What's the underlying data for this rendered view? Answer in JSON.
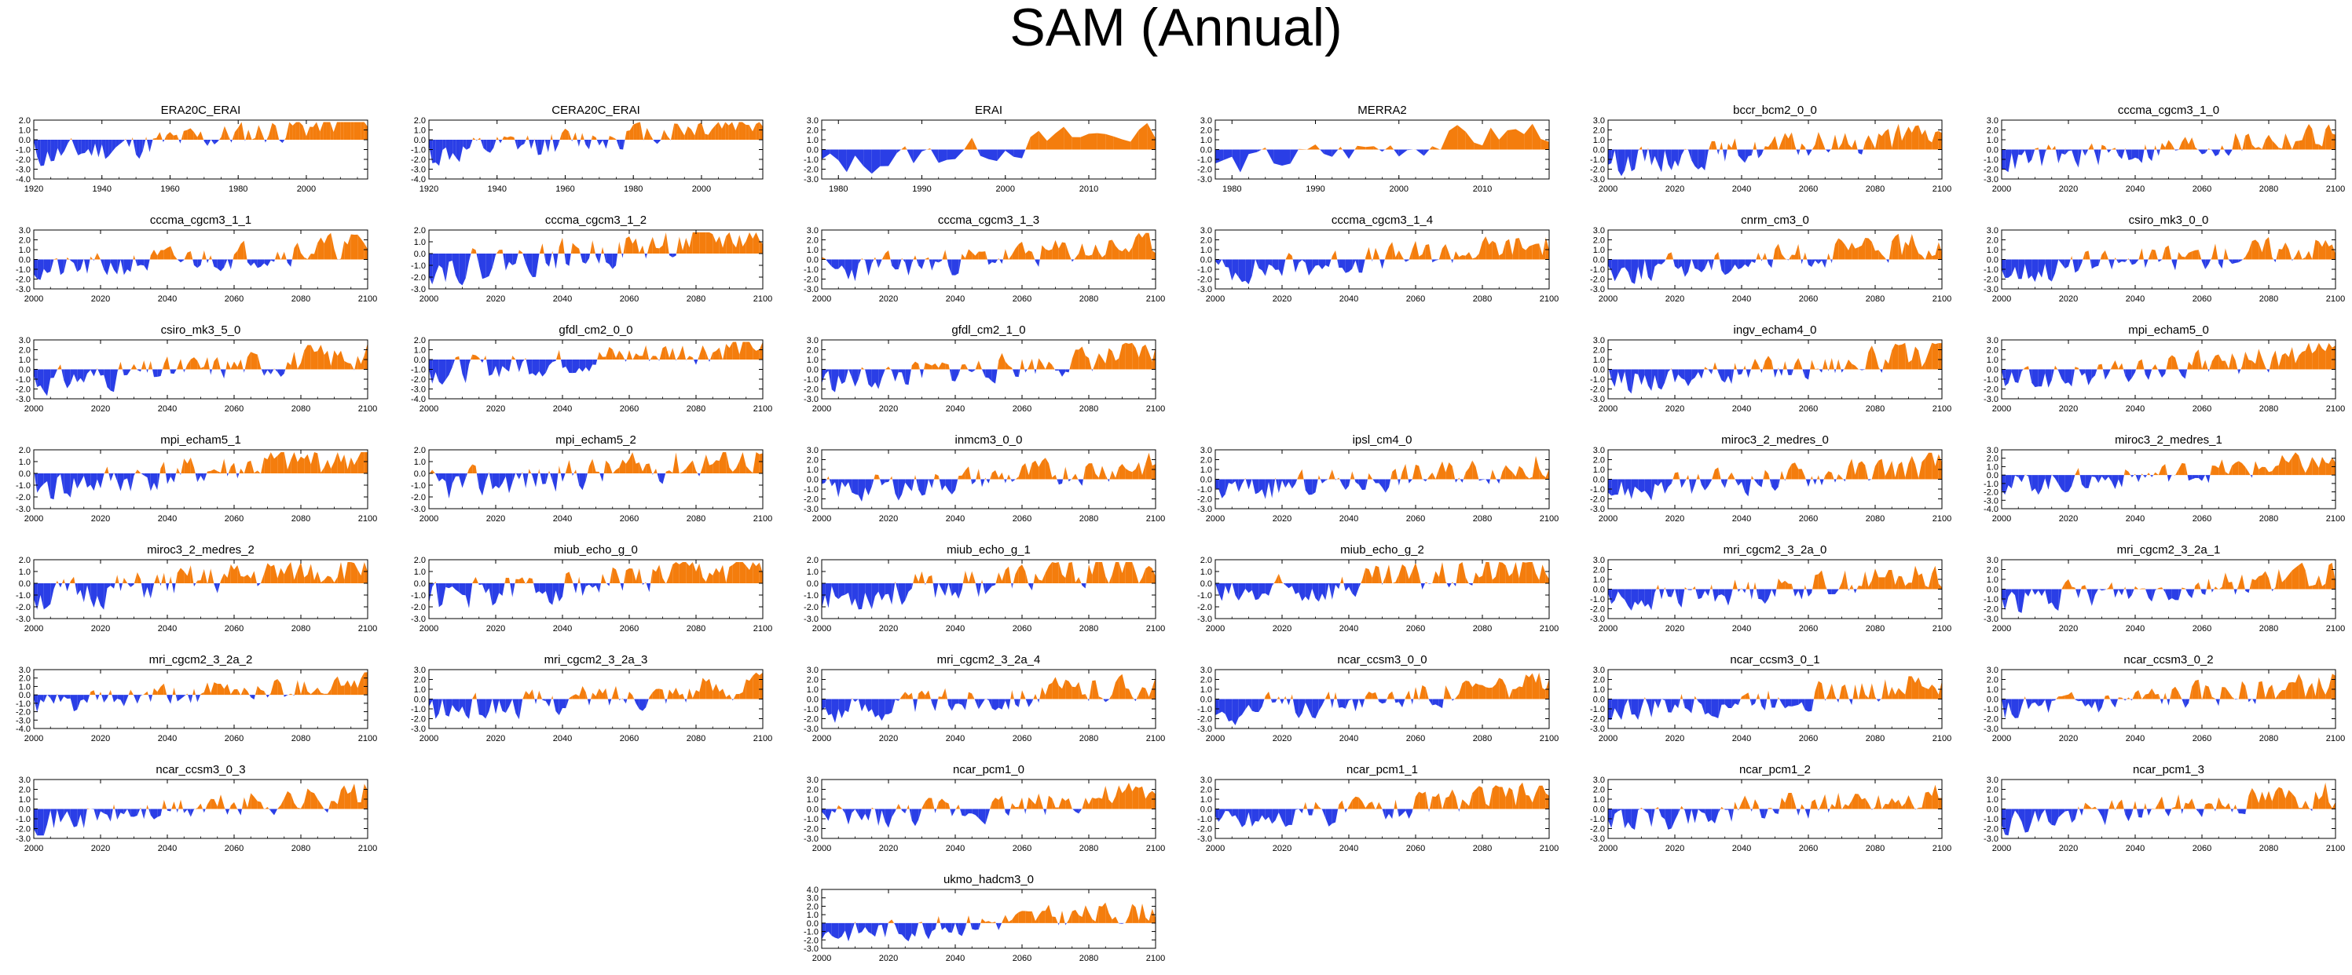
{
  "page": {
    "title": "SAM (Annual)"
  },
  "colors": {
    "positive": "#f47d0d",
    "negative": "#2a3ee6",
    "axis": "#000000",
    "background": "#ffffff"
  },
  "panels": [
    {
      "title": "ERA20C_ERAI",
      "xlim": [
        1920,
        2018
      ],
      "xticks": [
        1920,
        1940,
        1960,
        1980,
        2000
      ],
      "ylim": [
        -4.0,
        2.0
      ],
      "yticks": [
        "2.0",
        "1.0",
        "0.0",
        "-1.0",
        "-2.0",
        "-3.0",
        "-4.0"
      ],
      "seed": 11
    },
    {
      "title": "CERA20C_ERAI",
      "xlim": [
        1920,
        2018
      ],
      "xticks": [
        1920,
        1940,
        1960,
        1980,
        2000
      ],
      "ylim": [
        -4.0,
        2.0
      ],
      "yticks": [
        "2.0",
        "1.0",
        "0.0",
        "-1.0",
        "-2.0",
        "-3.0",
        "-4.0"
      ],
      "seed": 12
    },
    {
      "title": "ERAI",
      "xlim": [
        1978,
        2018
      ],
      "xticks": [
        1980,
        1990,
        2000,
        2010
      ],
      "ylim": [
        -3.0,
        3.0
      ],
      "yticks": [
        "3.0",
        "2.0",
        "1.0",
        "0.0",
        "-1.0",
        "-2.0",
        "-3.0"
      ],
      "seed": 13
    },
    {
      "title": "MERRA2",
      "xlim": [
        1978,
        2018
      ],
      "xticks": [
        1980,
        1990,
        2000,
        2010
      ],
      "ylim": [
        -3.0,
        3.0
      ],
      "yticks": [
        "3.0",
        "2.0",
        "1.0",
        "0.0",
        "-1.0",
        "-2.0",
        "-3.0"
      ],
      "seed": 14
    },
    {
      "title": "bccr_bcm2_0_0",
      "xlim": [
        2000,
        2100
      ],
      "xticks": [
        2000,
        2020,
        2040,
        2060,
        2080,
        2100
      ],
      "ylim": [
        -3.0,
        3.0
      ],
      "yticks": [
        "3.0",
        "2.0",
        "1.0",
        "0.0",
        "-1.0",
        "-2.0",
        "-3.0"
      ],
      "seed": 15
    },
    {
      "title": "cccma_cgcm3_1_0",
      "xlim": [
        2000,
        2100
      ],
      "xticks": [
        2000,
        2020,
        2040,
        2060,
        2080,
        2100
      ],
      "ylim": [
        -3.0,
        3.0
      ],
      "yticks": [
        "3.0",
        "2.0",
        "1.0",
        "0.0",
        "-1.0",
        "-2.0",
        "-3.0"
      ],
      "seed": 16
    },
    {
      "title": "cccma_cgcm3_1_1",
      "xlim": [
        2000,
        2100
      ],
      "xticks": [
        2000,
        2020,
        2040,
        2060,
        2080,
        2100
      ],
      "ylim": [
        -3.0,
        3.0
      ],
      "yticks": [
        "3.0",
        "2.0",
        "1.0",
        "0.0",
        "-1.0",
        "-2.0",
        "-3.0"
      ],
      "seed": 21
    },
    {
      "title": "cccma_cgcm3_1_2",
      "xlim": [
        2000,
        2100
      ],
      "xticks": [
        2000,
        2020,
        2040,
        2060,
        2080,
        2100
      ],
      "ylim": [
        -3.0,
        2.0
      ],
      "yticks": [
        "2.0",
        "1.0",
        "0.0",
        "-1.0",
        "-2.0",
        "-3.0"
      ],
      "seed": 22
    },
    {
      "title": "cccma_cgcm3_1_3",
      "xlim": [
        2000,
        2100
      ],
      "xticks": [
        2000,
        2020,
        2040,
        2060,
        2080,
        2100
      ],
      "ylim": [
        -3.0,
        3.0
      ],
      "yticks": [
        "3.0",
        "2.0",
        "1.0",
        "0.0",
        "-1.0",
        "-2.0",
        "-3.0"
      ],
      "seed": 23
    },
    {
      "title": "cccma_cgcm3_1_4",
      "xlim": [
        2000,
        2100
      ],
      "xticks": [
        2000,
        2020,
        2040,
        2060,
        2080,
        2100
      ],
      "ylim": [
        -3.0,
        3.0
      ],
      "yticks": [
        "3.0",
        "2.0",
        "1.0",
        "0.0",
        "-1.0",
        "-2.0",
        "-3.0"
      ],
      "seed": 24
    },
    {
      "title": "cnrm_cm3_0",
      "xlim": [
        2000,
        2100
      ],
      "xticks": [
        2000,
        2020,
        2040,
        2060,
        2080,
        2100
      ],
      "ylim": [
        -3.0,
        3.0
      ],
      "yticks": [
        "3.0",
        "2.0",
        "1.0",
        "0.0",
        "-1.0",
        "-2.0",
        "-3.0"
      ],
      "seed": 25
    },
    {
      "title": "csiro_mk3_0_0",
      "xlim": [
        2000,
        2100
      ],
      "xticks": [
        2000,
        2020,
        2040,
        2060,
        2080,
        2100
      ],
      "ylim": [
        -3.0,
        3.0
      ],
      "yticks": [
        "3.0",
        "2.0",
        "1.0",
        "0.0",
        "-1.0",
        "-2.0",
        "-3.0"
      ],
      "seed": 26
    },
    {
      "title": "csiro_mk3_5_0",
      "xlim": [
        2000,
        2100
      ],
      "xticks": [
        2000,
        2020,
        2040,
        2060,
        2080,
        2100
      ],
      "ylim": [
        -3.0,
        3.0
      ],
      "yticks": [
        "3.0",
        "2.0",
        "1.0",
        "0.0",
        "-1.0",
        "-2.0",
        "-3.0"
      ],
      "seed": 31
    },
    {
      "title": "gfdl_cm2_0_0",
      "xlim": [
        2000,
        2100
      ],
      "xticks": [
        2000,
        2020,
        2040,
        2060,
        2080,
        2100
      ],
      "ylim": [
        -4.0,
        2.0
      ],
      "yticks": [
        "2.0",
        "1.0",
        "0.0",
        "-1.0",
        "-2.0",
        "-3.0",
        "-4.0"
      ],
      "seed": 32
    },
    {
      "title": "gfdl_cm2_1_0",
      "xlim": [
        2000,
        2100
      ],
      "xticks": [
        2000,
        2020,
        2040,
        2060,
        2080,
        2100
      ],
      "ylim": [
        -3.0,
        3.0
      ],
      "yticks": [
        "3.0",
        "2.0",
        "1.0",
        "0.0",
        "-1.0",
        "-2.0",
        "-3.0"
      ],
      "seed": 33
    },
    null,
    {
      "title": "ingv_echam4_0",
      "xlim": [
        2000,
        2100
      ],
      "xticks": [
        2000,
        2020,
        2040,
        2060,
        2080,
        2100
      ],
      "ylim": [
        -3.0,
        3.0
      ],
      "yticks": [
        "3.0",
        "2.0",
        "1.0",
        "0.0",
        "-1.0",
        "-2.0",
        "-3.0"
      ],
      "seed": 35
    },
    {
      "title": "mpi_echam5_0",
      "xlim": [
        2000,
        2100
      ],
      "xticks": [
        2000,
        2020,
        2040,
        2060,
        2080,
        2100
      ],
      "ylim": [
        -3.0,
        3.0
      ],
      "yticks": [
        "3.0",
        "2.0",
        "1.0",
        "0.0",
        "-1.0",
        "-2.0",
        "-3.0"
      ],
      "seed": 36
    },
    {
      "title": "mpi_echam5_1",
      "xlim": [
        2000,
        2100
      ],
      "xticks": [
        2000,
        2020,
        2040,
        2060,
        2080,
        2100
      ],
      "ylim": [
        -3.0,
        2.0
      ],
      "yticks": [
        "2.0",
        "1.0",
        "0.0",
        "-1.0",
        "-2.0",
        "-3.0"
      ],
      "seed": 41
    },
    {
      "title": "mpi_echam5_2",
      "xlim": [
        2000,
        2100
      ],
      "xticks": [
        2000,
        2020,
        2040,
        2060,
        2080,
        2100
      ],
      "ylim": [
        -3.0,
        2.0
      ],
      "yticks": [
        "2.0",
        "1.0",
        "0.0",
        "-1.0",
        "-2.0",
        "-3.0"
      ],
      "seed": 42
    },
    {
      "title": "inmcm3_0_0",
      "xlim": [
        2000,
        2100
      ],
      "xticks": [
        2000,
        2020,
        2040,
        2060,
        2080,
        2100
      ],
      "ylim": [
        -3.0,
        3.0
      ],
      "yticks": [
        "3.0",
        "2.0",
        "1.0",
        "0.0",
        "-1.0",
        "-2.0",
        "-3.0"
      ],
      "seed": 43
    },
    {
      "title": "ipsl_cm4_0",
      "xlim": [
        2000,
        2100
      ],
      "xticks": [
        2000,
        2020,
        2040,
        2060,
        2080,
        2100
      ],
      "ylim": [
        -3.0,
        3.0
      ],
      "yticks": [
        "3.0",
        "2.0",
        "1.0",
        "0.0",
        "-1.0",
        "-2.0",
        "-3.0"
      ],
      "seed": 44
    },
    {
      "title": "miroc3_2_medres_0",
      "xlim": [
        2000,
        2100
      ],
      "xticks": [
        2000,
        2020,
        2040,
        2060,
        2080,
        2100
      ],
      "ylim": [
        -3.0,
        3.0
      ],
      "yticks": [
        "3.0",
        "2.0",
        "1.0",
        "0.0",
        "-1.0",
        "-2.0",
        "-3.0"
      ],
      "seed": 45
    },
    {
      "title": "miroc3_2_medres_1",
      "xlim": [
        2000,
        2100
      ],
      "xticks": [
        2000,
        2020,
        2040,
        2060,
        2080,
        2100
      ],
      "ylim": [
        -4.0,
        3.0
      ],
      "yticks": [
        "3.0",
        "2.0",
        "1.0",
        "0.0",
        "-1.0",
        "-2.0",
        "-3.0",
        "-4.0"
      ],
      "seed": 46
    },
    {
      "title": "miroc3_2_medres_2",
      "xlim": [
        2000,
        2100
      ],
      "xticks": [
        2000,
        2020,
        2040,
        2060,
        2080,
        2100
      ],
      "ylim": [
        -3.0,
        2.0
      ],
      "yticks": [
        "2.0",
        "1.0",
        "0.0",
        "-1.0",
        "-2.0",
        "-3.0"
      ],
      "seed": 51
    },
    {
      "title": "miub_echo_g_0",
      "xlim": [
        2000,
        2100
      ],
      "xticks": [
        2000,
        2020,
        2040,
        2060,
        2080,
        2100
      ],
      "ylim": [
        -3.0,
        2.0
      ],
      "yticks": [
        "2.0",
        "1.0",
        "0.0",
        "-1.0",
        "-2.0",
        "-3.0"
      ],
      "seed": 52
    },
    {
      "title": "miub_echo_g_1",
      "xlim": [
        2000,
        2100
      ],
      "xticks": [
        2000,
        2020,
        2040,
        2060,
        2080,
        2100
      ],
      "ylim": [
        -3.0,
        2.0
      ],
      "yticks": [
        "2.0",
        "1.0",
        "0.0",
        "-1.0",
        "-2.0",
        "-3.0"
      ],
      "seed": 53
    },
    {
      "title": "miub_echo_g_2",
      "xlim": [
        2000,
        2100
      ],
      "xticks": [
        2000,
        2020,
        2040,
        2060,
        2080,
        2100
      ],
      "ylim": [
        -3.0,
        2.0
      ],
      "yticks": [
        "2.0",
        "1.0",
        "0.0",
        "-1.0",
        "-2.0",
        "-3.0"
      ],
      "seed": 54
    },
    {
      "title": "mri_cgcm2_3_2a_0",
      "xlim": [
        2000,
        2100
      ],
      "xticks": [
        2000,
        2020,
        2040,
        2060,
        2080,
        2100
      ],
      "ylim": [
        -3.0,
        3.0
      ],
      "yticks": [
        "3.0",
        "2.0",
        "1.0",
        "0.0",
        "-1.0",
        "-2.0",
        "-3.0"
      ],
      "seed": 55
    },
    {
      "title": "mri_cgcm2_3_2a_1",
      "xlim": [
        2000,
        2100
      ],
      "xticks": [
        2000,
        2020,
        2040,
        2060,
        2080,
        2100
      ],
      "ylim": [
        -3.0,
        3.0
      ],
      "yticks": [
        "3.0",
        "2.0",
        "1.0",
        "0.0",
        "-1.0",
        "-2.0",
        "-3.0"
      ],
      "seed": 56
    },
    {
      "title": "mri_cgcm2_3_2a_2",
      "xlim": [
        2000,
        2100
      ],
      "xticks": [
        2000,
        2020,
        2040,
        2060,
        2080,
        2100
      ],
      "ylim": [
        -4.0,
        3.0
      ],
      "yticks": [
        "3.0",
        "2.0",
        "1.0",
        "0.0",
        "-1.0",
        "-2.0",
        "-3.0",
        "-4.0"
      ],
      "seed": 61
    },
    {
      "title": "mri_cgcm2_3_2a_3",
      "xlim": [
        2000,
        2100
      ],
      "xticks": [
        2000,
        2020,
        2040,
        2060,
        2080,
        2100
      ],
      "ylim": [
        -3.0,
        3.0
      ],
      "yticks": [
        "3.0",
        "2.0",
        "1.0",
        "0.0",
        "-1.0",
        "-2.0",
        "-3.0"
      ],
      "seed": 62
    },
    {
      "title": "mri_cgcm2_3_2a_4",
      "xlim": [
        2000,
        2100
      ],
      "xticks": [
        2000,
        2020,
        2040,
        2060,
        2080,
        2100
      ],
      "ylim": [
        -3.0,
        3.0
      ],
      "yticks": [
        "3.0",
        "2.0",
        "1.0",
        "0.0",
        "-1.0",
        "-2.0",
        "-3.0"
      ],
      "seed": 63
    },
    {
      "title": "ncar_ccsm3_0_0",
      "xlim": [
        2000,
        2100
      ],
      "xticks": [
        2000,
        2020,
        2040,
        2060,
        2080,
        2100
      ],
      "ylim": [
        -3.0,
        3.0
      ],
      "yticks": [
        "3.0",
        "2.0",
        "1.0",
        "0.0",
        "-1.0",
        "-2.0",
        "-3.0"
      ],
      "seed": 64
    },
    {
      "title": "ncar_ccsm3_0_1",
      "xlim": [
        2000,
        2100
      ],
      "xticks": [
        2000,
        2020,
        2040,
        2060,
        2080,
        2100
      ],
      "ylim": [
        -3.0,
        3.0
      ],
      "yticks": [
        "3.0",
        "2.0",
        "1.0",
        "0.0",
        "-1.0",
        "-2.0",
        "-3.0"
      ],
      "seed": 65
    },
    {
      "title": "ncar_ccsm3_0_2",
      "xlim": [
        2000,
        2100
      ],
      "xticks": [
        2000,
        2020,
        2040,
        2060,
        2080,
        2100
      ],
      "ylim": [
        -3.0,
        3.0
      ],
      "yticks": [
        "3.0",
        "2.0",
        "1.0",
        "0.0",
        "-1.0",
        "-2.0",
        "-3.0"
      ],
      "seed": 66
    },
    {
      "title": "ncar_ccsm3_0_3",
      "xlim": [
        2000,
        2100
      ],
      "xticks": [
        2000,
        2020,
        2040,
        2060,
        2080,
        2100
      ],
      "ylim": [
        -3.0,
        3.0
      ],
      "yticks": [
        "3.0",
        "2.0",
        "1.0",
        "0.0",
        "-1.0",
        "-2.0",
        "-3.0"
      ],
      "seed": 71
    },
    null,
    {
      "title": "ncar_pcm1_0",
      "xlim": [
        2000,
        2100
      ],
      "xticks": [
        2000,
        2020,
        2040,
        2060,
        2080,
        2100
      ],
      "ylim": [
        -3.0,
        3.0
      ],
      "yticks": [
        "3.0",
        "2.0",
        "1.0",
        "0.0",
        "-1.0",
        "-2.0",
        "-3.0"
      ],
      "seed": 73
    },
    {
      "title": "ncar_pcm1_1",
      "xlim": [
        2000,
        2100
      ],
      "xticks": [
        2000,
        2020,
        2040,
        2060,
        2080,
        2100
      ],
      "ylim": [
        -3.0,
        3.0
      ],
      "yticks": [
        "3.0",
        "2.0",
        "1.0",
        "0.0",
        "-1.0",
        "-2.0",
        "-3.0"
      ],
      "seed": 74
    },
    {
      "title": "ncar_pcm1_2",
      "xlim": [
        2000,
        2100
      ],
      "xticks": [
        2000,
        2020,
        2040,
        2060,
        2080,
        2100
      ],
      "ylim": [
        -3.0,
        3.0
      ],
      "yticks": [
        "3.0",
        "2.0",
        "1.0",
        "0.0",
        "-1.0",
        "-2.0",
        "-3.0"
      ],
      "seed": 75
    },
    {
      "title": "ncar_pcm1_3",
      "xlim": [
        2000,
        2100
      ],
      "xticks": [
        2000,
        2020,
        2040,
        2060,
        2080,
        2100
      ],
      "ylim": [
        -3.0,
        3.0
      ],
      "yticks": [
        "3.0",
        "2.0",
        "1.0",
        "0.0",
        "-1.0",
        "-2.0",
        "-3.0"
      ],
      "seed": 76
    },
    null,
    null,
    {
      "title": "ukmo_hadcm3_0",
      "xlim": [
        2000,
        2100
      ],
      "xticks": [
        2000,
        2020,
        2040,
        2060,
        2080,
        2100
      ],
      "ylim": [
        -3.0,
        4.0
      ],
      "yticks": [
        "4.0",
        "3.0",
        "2.0",
        "1.0",
        "0.0",
        "-1.0",
        "-2.0",
        "-3.0"
      ],
      "seed": 83
    },
    null,
    null,
    null
  ]
}
